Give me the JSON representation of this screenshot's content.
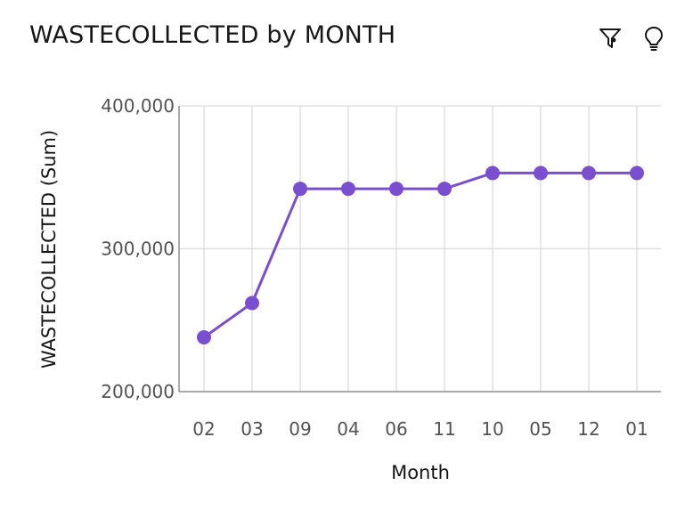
{
  "title": "WASTECOLLECTED by MONTH",
  "toolbar": {
    "filter_icon": "filter-icon",
    "insight_icon": "lightbulb-icon"
  },
  "colors": {
    "series": "#7a4fcf",
    "grid": "#e0e0e0",
    "axis": "#8d8d8d"
  },
  "chart_data": {
    "type": "line",
    "title": "WASTECOLLECTED by MONTH",
    "xlabel": "Month",
    "ylabel": "WASTECOLLECTED (Sum)",
    "categories": [
      "02",
      "03",
      "09",
      "04",
      "06",
      "11",
      "10",
      "05",
      "12",
      "01"
    ],
    "series": [
      {
        "values": [
          238000,
          262000,
          342000,
          342000,
          342000,
          342000,
          353000,
          353000,
          353000,
          353000
        ]
      }
    ],
    "ylim": [
      200000,
      400000
    ],
    "yticks": [
      200000,
      300000,
      400000
    ],
    "ytick_labels": [
      "200,000",
      "300,000",
      "400,000"
    ],
    "grid": true,
    "legend": "none"
  }
}
